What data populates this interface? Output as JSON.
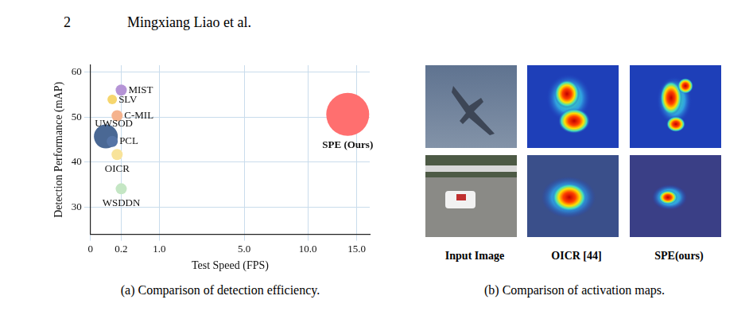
{
  "header": {
    "page_number": "2",
    "running_title": "Mingxiang Liao et al."
  },
  "chart_data": {
    "type": "bubble",
    "caption": "(a) Comparison of detection efficiency.",
    "x_label": "Test Speed (FPS)",
    "y_label": "Detection Performance (mAP)",
    "point_labels": [
      "MIST",
      "SLV",
      "C-MIL",
      "UWSOD",
      "PCL",
      "OICR",
      "WSDDN",
      "SPE (Ours)"
    ],
    "x": [
      0.2,
      0.1,
      0.15,
      0.05,
      0.1,
      0.15,
      0.2,
      14.0
    ],
    "values": [
      56.0,
      53.9,
      50.3,
      45.7,
      44.6,
      41.7,
      34.1,
      50.6
    ],
    "sizes": [
      7,
      6,
      7,
      15,
      7,
      7,
      7,
      27
    ],
    "colors": [
      "#b594d6",
      "#f6d66e",
      "#f5b38e",
      "#4a6894",
      "#5574a6",
      "#f8e39a",
      "#c4e6c4",
      "#ff6f6f"
    ],
    "xlim": [
      0,
      16.5
    ],
    "xticks": [
      0,
      0.2,
      {
        "value": 1,
        "label": "1.0"
      },
      {
        "value": 5,
        "label": "5.0"
      },
      {
        "value": 10,
        "label": "10.0"
      },
      {
        "value": 15,
        "label": "15.0"
      }
    ],
    "ylim": [
      24,
      61.5
    ],
    "yticks": [
      30,
      40,
      50,
      60
    ],
    "grid": true
  },
  "activation_maps": {
    "columns": [
      "Input Image",
      "OICR [44]",
      "SPE(ours)"
    ],
    "caption": "(b) Comparison of activation maps."
  }
}
